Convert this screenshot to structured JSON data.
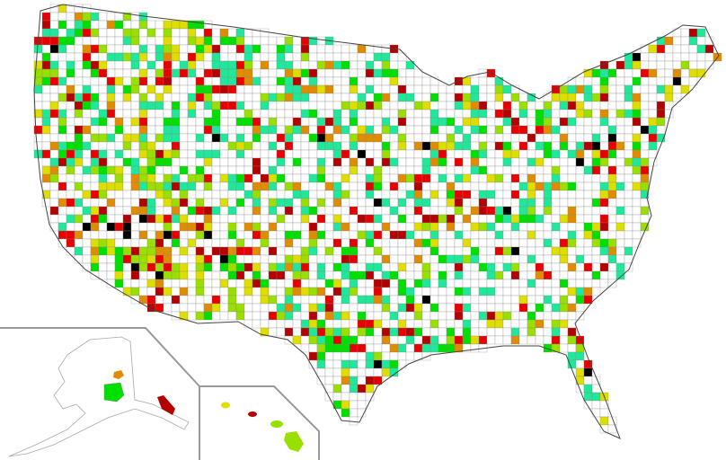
{
  "map": {
    "palette": {
      "none": "#ffffff",
      "teal": "#20e89a",
      "green": "#00e000",
      "yellow_green": "#99e000",
      "yellow": "#dede00",
      "orange": "#e08c00",
      "red": "#e80000",
      "dark_red": "#b40000",
      "black": "#000000"
    },
    "border_color": "#888888",
    "inset_line_color": "#999999",
    "insets": [
      "Alaska",
      "Hawaii"
    ]
  }
}
